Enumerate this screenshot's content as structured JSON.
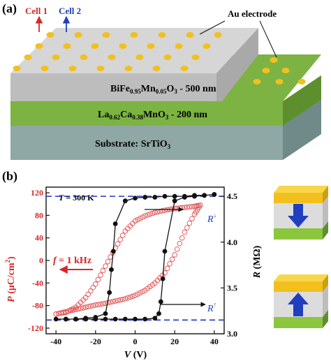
{
  "panel_a": {
    "label": "(a)",
    "cell1": "Cell 1",
    "cell2": "Cell 2",
    "au_electrode": "Au electrode",
    "layer_bfo": {
      "a": "BiFe",
      "a_sub": "0.95",
      "b": "Mn",
      "b_sub": "0.05",
      "c": "O",
      "c_sub": "3",
      "d": " - 500 nm"
    },
    "layer_lcmo": {
      "a": "La",
      "a_sub": "0.62",
      "b": "Ca",
      "b_sub": "0.38",
      "c": "MnO",
      "c_sub": "3",
      "d": " - 200 nm"
    },
    "layer_sub": {
      "a": "Substrate: SrTiO",
      "a_sub": "3"
    },
    "colors": {
      "bfo": "#c8c8c8",
      "lcmo": "#7cb342",
      "substrate": "#8fa7a5",
      "dots": "#f2c01e",
      "cell1": "#d62728",
      "cell2": "#1f3fbf"
    }
  },
  "panel_b": {
    "label": "(b)",
    "temperature": {
      "T": "T",
      "value": " = 300 K"
    },
    "frequency": {
      "f": "f",
      "value": " = 1 kHz"
    },
    "r_down": {
      "R": "R",
      "sup": "↓"
    },
    "r_up": {
      "R": "R",
      "sup": "↑"
    },
    "ylabel_left": {
      "P": "P",
      "unit": " (μC/cm",
      "sup": "2",
      "end": ")"
    },
    "ylabel_right": {
      "R": "R",
      "unit": " (MΩ)"
    },
    "xlabel": {
      "V": "V",
      "unit": " (V)"
    },
    "colors": {
      "polarization": "#e05050",
      "resistance": "#111111",
      "dashed": "#2233cc",
      "electrode": "#f2c01e",
      "lcmo": "#7cb342",
      "arrow": "#1f3fbf"
    }
  },
  "chart_data": {
    "type": "scatter",
    "x_axis": {
      "label": "V (V)",
      "ticks": [
        -40,
        -20,
        0,
        20,
        40
      ],
      "range": [
        -45,
        45
      ]
    },
    "y_left": {
      "label": "P (μC/cm2)",
      "ticks": [
        -120,
        -80,
        -40,
        0,
        40,
        80,
        120
      ],
      "range": [
        -130,
        130
      ]
    },
    "y_right": {
      "label": "R (MΩ)",
      "ticks": [
        3.0,
        3.5,
        4.0,
        4.5
      ],
      "range": [
        3.0,
        4.6
      ]
    },
    "reference_lines_R": [
      4.5,
      3.15
    ],
    "series": [
      {
        "axis": "left",
        "marker": "open-circle",
        "x": [
          -40,
          -35,
          -30,
          -25,
          -20,
          -15,
          -10,
          -5,
          0,
          5,
          10,
          15,
          20,
          25,
          30,
          33,
          30,
          25,
          20,
          15,
          10,
          5,
          0,
          -5,
          -10,
          -15,
          -20,
          -25,
          -30,
          -35,
          -40
        ],
        "y": [
          -95,
          -91,
          -87,
          -83,
          -79,
          -76,
          -72,
          -68,
          -62,
          -53,
          -40,
          -22,
          10,
          50,
          82,
          98,
          96,
          94,
          92,
          89,
          85,
          79,
          70,
          52,
          22,
          -10,
          -42,
          -66,
          -83,
          -92,
          -95
        ]
      },
      {
        "axis": "right",
        "marker": "filled-circle",
        "x": [
          40,
          35,
          30,
          25,
          20,
          15,
          10,
          5,
          0,
          -5,
          -10,
          -11,
          -12,
          -13,
          -15,
          -20,
          -25,
          -30,
          -35,
          -40,
          -35,
          -30,
          -25,
          -20,
          -15,
          -10,
          -5,
          0,
          5,
          10,
          12,
          13,
          14,
          15,
          20,
          25,
          30,
          35,
          40
        ],
        "y": [
          4.52,
          4.51,
          4.51,
          4.5,
          4.5,
          4.5,
          4.49,
          4.49,
          4.48,
          4.45,
          4.2,
          3.9,
          3.7,
          3.45,
          3.22,
          3.18,
          3.17,
          3.16,
          3.16,
          3.16,
          3.16,
          3.16,
          3.16,
          3.16,
          3.16,
          3.16,
          3.16,
          3.16,
          3.16,
          3.17,
          3.22,
          3.35,
          3.6,
          3.9,
          4.45,
          4.49,
          4.5,
          4.51,
          4.52
        ]
      }
    ]
  }
}
